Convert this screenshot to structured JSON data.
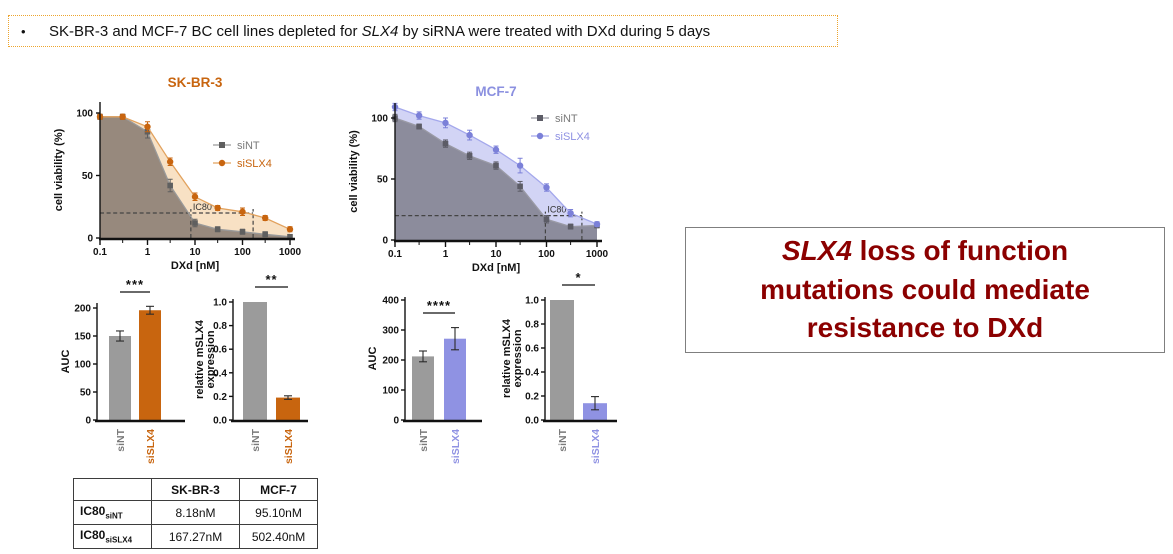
{
  "bullet": {
    "marker": "•",
    "pre": "SK-BR-3 and MCF-7 BC cell lines depleted for ",
    "gene": "SLX4",
    "post": " by siRNA were treated with DXd during 5 days"
  },
  "conclusion": {
    "gene": "SLX4",
    "line1_rest": " loss of function",
    "line2": "mutations could mediate",
    "line3": "resistance to DXd",
    "text_color": "#8B0000"
  },
  "chart_data": [
    {
      "type": "line",
      "id": "skbr3-dose",
      "title": "SK-BR-3",
      "title_color": "#C8650F",
      "xlabel": "DXd [nM]",
      "ylabel": "cell viability (%)",
      "x_scale": "log",
      "xlim": [
        0.1,
        1000
      ],
      "ylim": [
        0,
        110
      ],
      "x_ticks": [
        0.1,
        1,
        10,
        100,
        1000
      ],
      "x_minor_ticks": [
        0.3,
        3,
        30,
        300
      ],
      "y_ticks": [
        0,
        50,
        100
      ],
      "x": [
        0.1,
        0.3,
        1,
        3,
        10,
        30,
        100,
        300,
        1000
      ],
      "series": [
        {
          "name": "siNT",
          "marker": "square",
          "line_color": "#9A9A9A",
          "color": "#5F5F5F",
          "fill": "#97897D",
          "label_color": "#7A7A7A",
          "values": [
            97,
            97,
            85,
            42,
            12,
            7,
            5,
            3,
            1
          ],
          "errors": [
            2,
            2,
            5,
            5,
            3,
            2,
            2,
            2,
            1
          ]
        },
        {
          "name": "siSLX4",
          "marker": "circle",
          "line_color": "#E2A25E",
          "color": "#C8650F",
          "fill": "#F8E1C4",
          "label_color": "#C8650F",
          "values": [
            97,
            97,
            89,
            61,
            33,
            24,
            21,
            16,
            7
          ],
          "errors": [
            2,
            2,
            4,
            3,
            3,
            2,
            3,
            2,
            2
          ]
        }
      ],
      "ic80": {
        "label": "IC80",
        "y": 20,
        "x_values": [
          8.18,
          167.27
        ]
      },
      "legend_position": "inside-right"
    },
    {
      "type": "line",
      "id": "mcf7-dose",
      "title": "MCF-7",
      "title_color": "#8B90E0",
      "xlabel": "DXd [nM]",
      "ylabel": "cell viability (%)",
      "x_scale": "log",
      "xlim": [
        0.1,
        1000
      ],
      "ylim": [
        0,
        113
      ],
      "x_ticks": [
        0.1,
        1,
        10,
        100,
        1000
      ],
      "x_minor_ticks": [
        0.3,
        3,
        30,
        300
      ],
      "y_ticks": [
        0,
        50,
        100
      ],
      "x": [
        0.1,
        0.3,
        1,
        3,
        10,
        30,
        100,
        300,
        1000
      ],
      "series": [
        {
          "name": "siNT",
          "marker": "square",
          "line_color": "#9A9AA5",
          "color": "#5C5C66",
          "fill": "#8C8C9C",
          "label_color": "#7A7A7A",
          "values": [
            100,
            93,
            79,
            69,
            61,
            44,
            17,
            11,
            12
          ],
          "errors": [
            3,
            2,
            3,
            3,
            3,
            4,
            3,
            2,
            2
          ]
        },
        {
          "name": "siSLX4",
          "marker": "circle",
          "line_color": "#A4A8EC",
          "color": "#7B80D8",
          "fill": "#D2D4F5",
          "label_color": "#8F92E3",
          "values": [
            109,
            102,
            96,
            86,
            74,
            61,
            43,
            22,
            13
          ],
          "errors": [
            3,
            3,
            4,
            4,
            3,
            6,
            3,
            3,
            2
          ]
        }
      ],
      "ic80": {
        "label": "IC80",
        "y": 20,
        "x_values": [
          95.1,
          502.4
        ]
      },
      "legend_position": "top-right"
    },
    {
      "type": "bar",
      "id": "skbr3-auc",
      "ylabel": [
        "AUC"
      ],
      "categories": [
        "siNT",
        "siSLX4"
      ],
      "values": [
        150,
        196
      ],
      "errors": [
        9,
        7
      ],
      "bar_colors": [
        "#9B9B9B",
        "#C8650F"
      ],
      "label_colors": [
        "#7A7A7A",
        "#C8650F"
      ],
      "y_ticks": [
        0,
        50,
        100,
        150,
        200
      ],
      "ylim": [
        0,
        220
      ],
      "significance": "***",
      "tick_format": "int"
    },
    {
      "type": "bar",
      "id": "skbr3-expr",
      "ylabel": [
        "relative mSLX4",
        "expression"
      ],
      "categories": [
        "siNT",
        "siSLX4"
      ],
      "values": [
        1.0,
        0.19
      ],
      "errors": [
        0,
        0.015
      ],
      "bar_colors": [
        "#9B9B9B",
        "#C8650F"
      ],
      "label_colors": [
        "#7A7A7A",
        "#C8650F"
      ],
      "y_ticks": [
        0,
        0.2,
        0.4,
        0.6,
        0.8,
        1.0
      ],
      "ylim": [
        0,
        1.08
      ],
      "significance": "**",
      "tick_format": "dec"
    },
    {
      "type": "bar",
      "id": "mcf7-auc",
      "ylabel": [
        "AUC"
      ],
      "categories": [
        "siNT",
        "siSLX4"
      ],
      "values": [
        212,
        271
      ],
      "errors": [
        18,
        37
      ],
      "bar_colors": [
        "#9B9B9B",
        "#8F92E3"
      ],
      "label_colors": [
        "#7A7A7A",
        "#8F92E3"
      ],
      "y_ticks": [
        0,
        100,
        200,
        300,
        400
      ],
      "ylim": [
        0,
        410
      ],
      "significance": "****",
      "tick_format": "int"
    },
    {
      "type": "bar",
      "id": "mcf7-expr",
      "ylabel": [
        "relative mSLX4",
        "expression"
      ],
      "categories": [
        "siNT",
        "siSLX4"
      ],
      "values": [
        1.0,
        0.14
      ],
      "errors": [
        0,
        0.055
      ],
      "bar_colors": [
        "#9B9B9B",
        "#8F92E3"
      ],
      "label_colors": [
        "#7A7A7A",
        "#8F92E3"
      ],
      "y_ticks": [
        0,
        0.2,
        0.4,
        0.6,
        0.8,
        1.0
      ],
      "ylim": [
        0,
        1.08
      ],
      "significance": "*",
      "tick_format": "dec"
    }
  ],
  "table": {
    "headers": [
      "",
      "SK-BR-3",
      "MCF-7"
    ],
    "rows": [
      {
        "label": "IC80",
        "label_sub": "siNT",
        "values": [
          "8.18nM",
          "95.10nM"
        ]
      },
      {
        "label": "IC80",
        "label_sub": "siSLX4",
        "values": [
          "167.27nM",
          "502.40nM"
        ]
      }
    ]
  }
}
